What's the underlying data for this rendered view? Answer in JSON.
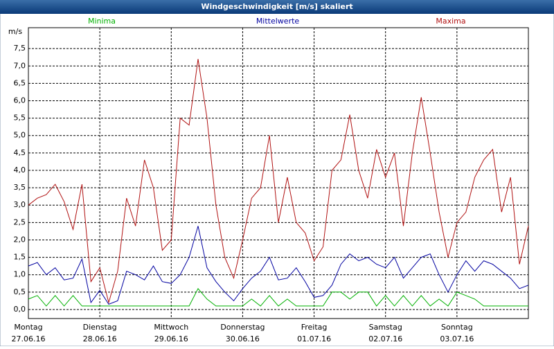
{
  "chart_data": {
    "type": "line",
    "title": "Windgeschwindigkeit [m/s] skaliert",
    "y_unit": "m/s",
    "x": [
      0,
      3,
      6,
      9,
      12,
      15,
      18,
      21,
      24,
      27,
      30,
      33,
      36,
      39,
      42,
      45,
      48,
      51,
      54,
      57,
      60,
      63,
      66,
      69,
      72,
      75,
      78,
      81,
      84,
      87,
      90,
      93,
      96,
      99,
      102,
      105,
      108,
      111,
      114,
      117,
      120,
      123,
      126,
      129,
      132,
      135,
      138,
      141,
      144,
      147,
      150,
      153,
      156,
      159,
      162,
      165,
      168
    ],
    "series": [
      {
        "name": "Minima",
        "color": "#00b000",
        "values": [
          0.3,
          0.4,
          0.1,
          0.4,
          0.1,
          0.4,
          0.1,
          0.1,
          0.1,
          0.1,
          0.1,
          0.1,
          0.1,
          0.1,
          0.1,
          0.1,
          0.1,
          0.1,
          0.1,
          0.6,
          0.3,
          0.1,
          0.1,
          0.1,
          0.1,
          0.3,
          0.1,
          0.4,
          0.1,
          0.3,
          0.1,
          0.1,
          0.1,
          0.1,
          0.5,
          0.5,
          0.3,
          0.5,
          0.5,
          0.1,
          0.4,
          0.1,
          0.4,
          0.1,
          0.4,
          0.1,
          0.3,
          0.1,
          0.5,
          0.4,
          0.3,
          0.1,
          0.1,
          0.1,
          0.1,
          0.1,
          0.1
        ]
      },
      {
        "name": "Mittelwerte",
        "color": "#0000a0",
        "values": [
          1.25,
          1.35,
          1.0,
          1.2,
          0.85,
          0.9,
          1.45,
          0.2,
          0.55,
          0.15,
          0.25,
          1.1,
          1.0,
          0.85,
          1.25,
          0.8,
          0.75,
          1.0,
          1.5,
          2.4,
          1.2,
          0.8,
          0.5,
          0.25,
          0.6,
          0.9,
          1.1,
          1.5,
          0.85,
          0.9,
          1.2,
          0.8,
          0.35,
          0.4,
          0.7,
          1.3,
          1.6,
          1.4,
          1.5,
          1.3,
          1.2,
          1.5,
          0.9,
          1.2,
          1.5,
          1.6,
          1.0,
          0.5,
          1.0,
          1.4,
          1.1,
          1.4,
          1.3,
          1.1,
          0.9,
          0.6,
          0.7
        ]
      },
      {
        "name": "Maxima",
        "color": "#b01010",
        "values": [
          3.0,
          3.2,
          3.3,
          3.6,
          3.1,
          2.3,
          3.6,
          0.8,
          1.2,
          0.2,
          1.1,
          3.2,
          2.4,
          4.3,
          3.5,
          1.7,
          2.0,
          5.5,
          5.3,
          7.2,
          5.5,
          3.0,
          1.5,
          0.9,
          2.0,
          3.2,
          3.5,
          5.0,
          2.5,
          3.8,
          2.5,
          2.2,
          1.4,
          1.8,
          4.0,
          4.3,
          5.6,
          4.0,
          3.2,
          4.6,
          3.8,
          4.5,
          2.4,
          4.5,
          6.1,
          4.5,
          2.8,
          1.5,
          2.5,
          2.8,
          3.8,
          4.3,
          4.6,
          2.8,
          3.8,
          1.3,
          2.4
        ]
      }
    ],
    "xlim": [
      0,
      168
    ],
    "xticks": [
      {
        "value": 0,
        "label": "Montag"
      },
      {
        "value": 24,
        "label": "Dienstag"
      },
      {
        "value": 48,
        "label": "Mittwoch"
      },
      {
        "value": 72,
        "label": "Donnerstag"
      },
      {
        "value": 96,
        "label": "Freitag"
      },
      {
        "value": 120,
        "label": "Samstag"
      },
      {
        "value": 144,
        "label": "Sonntag"
      }
    ],
    "xtick_dates": [
      "27.06.16",
      "28.06.16",
      "29.06.16",
      "30.06.16",
      "01.07.16",
      "02.07.16",
      "03.07.16"
    ],
    "ylim": [
      -0.26,
      8.1
    ],
    "yticks": [
      {
        "value": 0,
        "label": "0,0"
      },
      {
        "value": 0.5,
        "label": "0,5"
      },
      {
        "value": 1,
        "label": "1,0"
      },
      {
        "value": 1.5,
        "label": "1,5"
      },
      {
        "value": 2,
        "label": "2,0"
      },
      {
        "value": 2.5,
        "label": "2,5"
      },
      {
        "value": 3,
        "label": "3,0"
      },
      {
        "value": 3.5,
        "label": "3,5"
      },
      {
        "value": 4,
        "label": "4,0"
      },
      {
        "value": 4.5,
        "label": "4,5"
      },
      {
        "value": 5,
        "label": "5,0"
      },
      {
        "value": 5.5,
        "label": "5,5"
      },
      {
        "value": 6,
        "label": "6,0"
      },
      {
        "value": 6.5,
        "label": "6,5"
      },
      {
        "value": 7,
        "label": "7,0"
      },
      {
        "value": 7.5,
        "label": "7,5"
      }
    ],
    "grid": true
  }
}
